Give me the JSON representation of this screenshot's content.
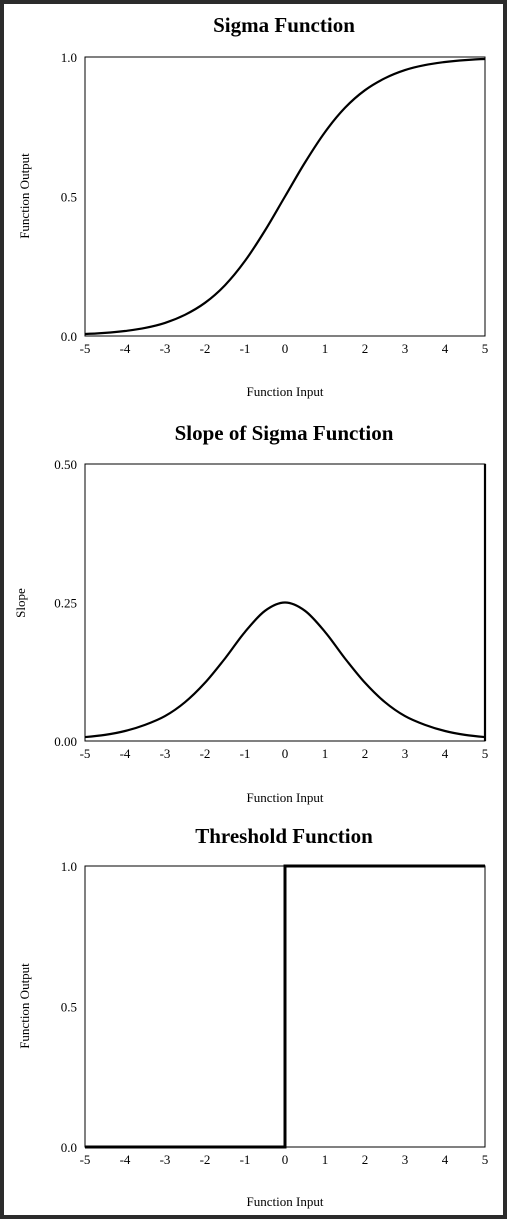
{
  "chart_data": [
    {
      "type": "line",
      "title": "Sigma Function",
      "xlabel": "Function Input",
      "ylabel": "Function Output",
      "xlim": [
        -5,
        5
      ],
      "ylim": [
        0,
        1
      ],
      "xticks": [
        "-5",
        "-4",
        "-3",
        "-2",
        "-1",
        "0",
        "1",
        "2",
        "3",
        "4",
        "5"
      ],
      "yticks": [
        "0.0",
        "0.5",
        "1.0"
      ],
      "ytick_values": [
        0,
        0.5,
        1
      ],
      "grid": false,
      "series": [
        {
          "x": [
            -5,
            -4.5,
            -4,
            -3.5,
            -3,
            -2.5,
            -2,
            -1.5,
            -1,
            -0.5,
            0,
            0.5,
            1,
            1.5,
            2,
            2.5,
            3,
            3.5,
            4,
            4.5,
            5
          ],
          "y": [
            0.007,
            0.011,
            0.018,
            0.029,
            0.047,
            0.076,
            0.119,
            0.182,
            0.269,
            0.378,
            0.5,
            0.622,
            0.731,
            0.818,
            0.881,
            0.924,
            0.953,
            0.971,
            0.982,
            0.989,
            0.993
          ]
        }
      ]
    },
    {
      "type": "line",
      "title": "Slope of Sigma Function",
      "xlabel": "Function Input",
      "ylabel": "Slope",
      "xlim": [
        -5,
        5
      ],
      "ylim": [
        0,
        0.5
      ],
      "xticks": [
        "-5",
        "-4",
        "-3",
        "-2",
        "-1",
        "0",
        "1",
        "2",
        "3",
        "4",
        "5"
      ],
      "yticks": [
        "0.00",
        "0.25",
        "0.50"
      ],
      "ytick_values": [
        0,
        0.25,
        0.5
      ],
      "grid": false,
      "series": [
        {
          "x": [
            -5,
            -4.5,
            -4,
            -3.5,
            -3,
            -2.5,
            -2,
            -1.5,
            -1,
            -0.5,
            0,
            0.5,
            1,
            1.5,
            2,
            2.5,
            3,
            3.5,
            4,
            4.5,
            5
          ],
          "y": [
            0.007,
            0.011,
            0.018,
            0.029,
            0.045,
            0.07,
            0.105,
            0.149,
            0.197,
            0.235,
            0.25,
            0.235,
            0.197,
            0.149,
            0.105,
            0.07,
            0.045,
            0.029,
            0.018,
            0.011,
            0.007
          ]
        }
      ]
    },
    {
      "type": "line",
      "title": "Threshold Function",
      "xlabel": "Function Input",
      "ylabel": "Function Output",
      "xlim": [
        -5,
        5
      ],
      "ylim": [
        0,
        1
      ],
      "xticks": [
        "-5",
        "-4",
        "-3",
        "-2",
        "-1",
        "0",
        "1",
        "2",
        "3",
        "4",
        "5"
      ],
      "yticks": [
        "0.0",
        "0.5",
        "1.0"
      ],
      "ytick_values": [
        0,
        0.5,
        1
      ],
      "grid": false,
      "series": [
        {
          "x": [
            -5,
            0,
            0,
            5
          ],
          "y": [
            0,
            0,
            1,
            1
          ]
        }
      ]
    }
  ]
}
